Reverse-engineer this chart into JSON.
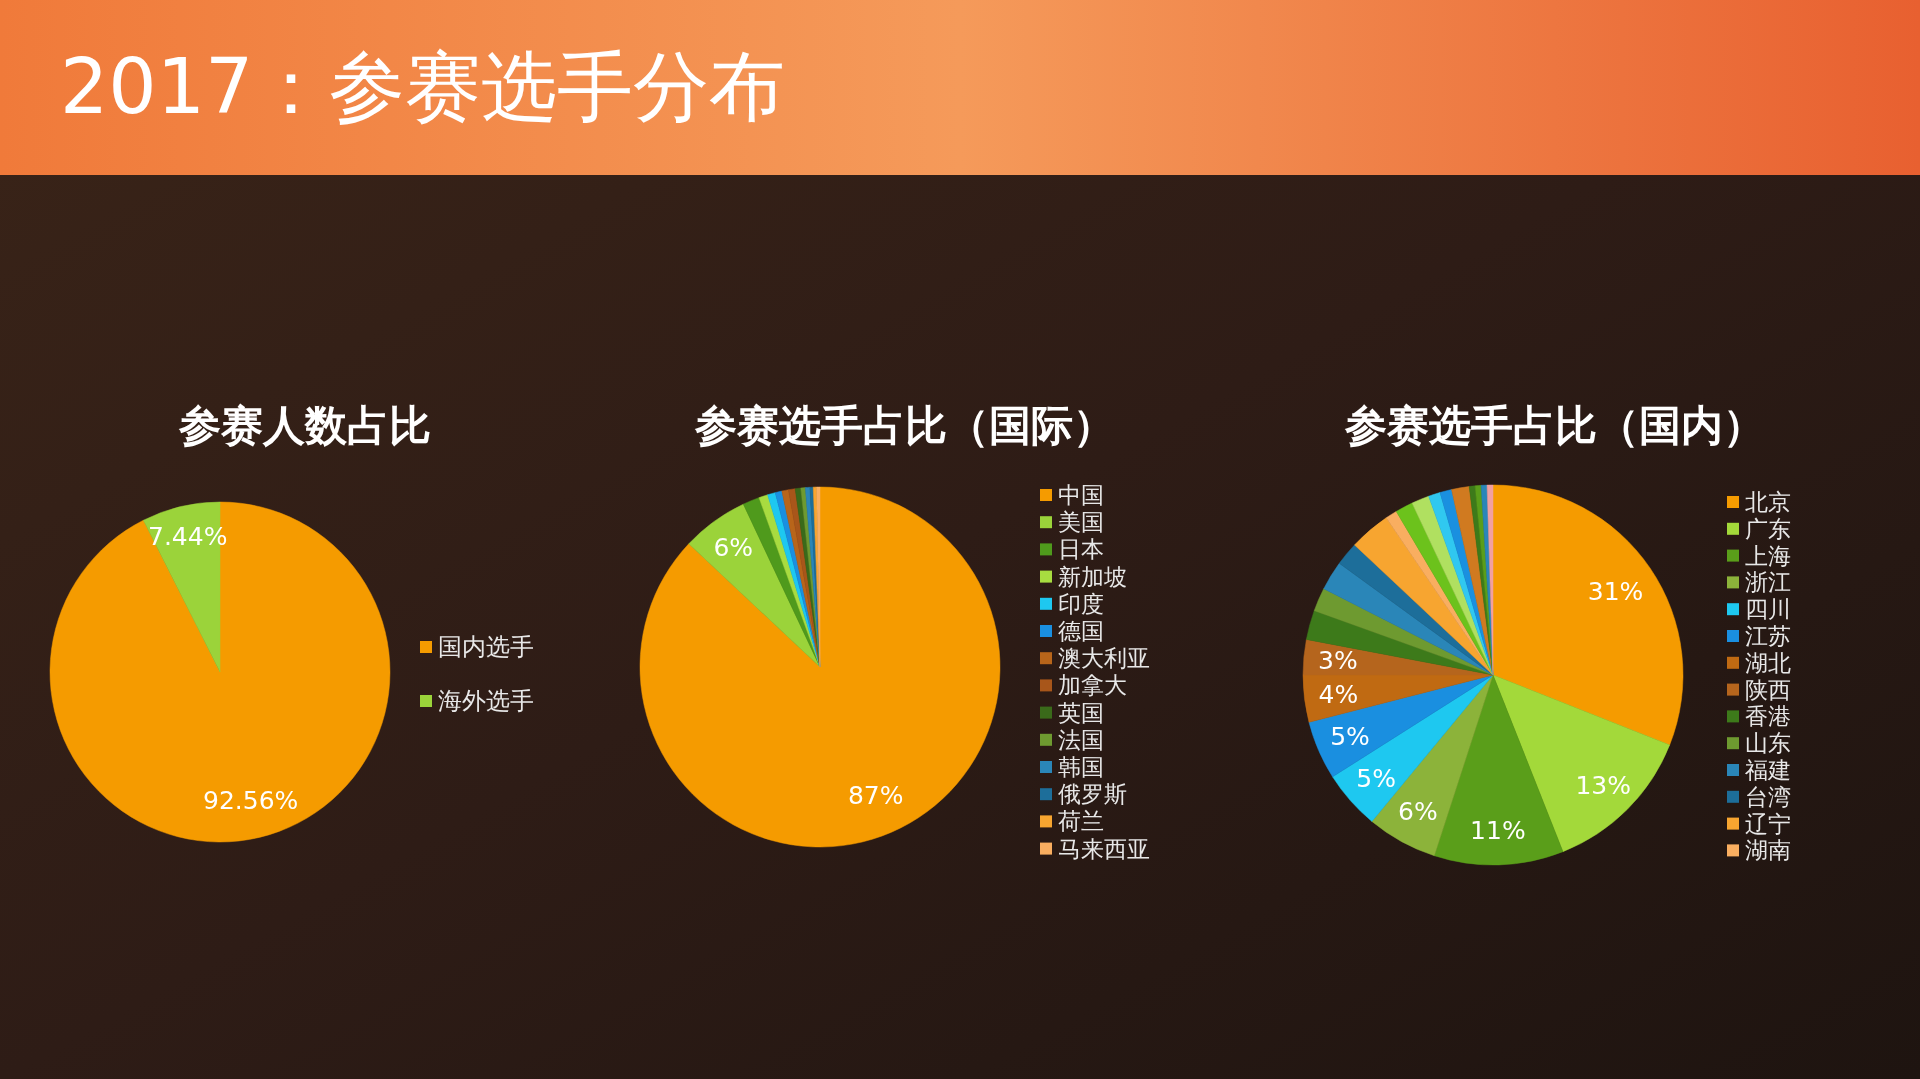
{
  "chart_data": [
    {
      "type": "pie",
      "title": "参赛人数占比",
      "annotations": [
        "2017：参赛选手分布"
      ],
      "categories": [
        "国内选手",
        "海外选手"
      ],
      "values": [
        92.56,
        7.44
      ],
      "colors": [
        "#f59b00",
        "#9bd33a"
      ],
      "value_labels": [
        "92.56%",
        "7.44%"
      ],
      "legend": "right"
    },
    {
      "type": "pie",
      "title": "参赛选手占比（国际）",
      "categories": [
        "中国",
        "美国",
        "日本",
        "新加坡",
        "印度",
        "德国",
        "澳大利亚",
        "加拿大",
        "英国",
        "法国",
        "韩国",
        "俄罗斯",
        "荷兰",
        "马来西亚"
      ],
      "values": [
        87,
        6,
        1.5,
        0.8,
        0.7,
        0.6,
        0.6,
        0.6,
        0.5,
        0.4,
        0.4,
        0.3,
        0.3,
        0.3
      ],
      "colors": [
        "#f59b00",
        "#9bd33a",
        "#4f9a1c",
        "#a8dc40",
        "#1ec8f0",
        "#1a8fe0",
        "#b8651a",
        "#a8561a",
        "#3a6a1a",
        "#6e9a30",
        "#2a86b8",
        "#1d6e9a",
        "#f7a530",
        "#f9ae60"
      ],
      "value_labels": [
        "87%",
        "6%",
        null,
        null,
        null,
        null,
        null,
        null,
        null,
        null,
        null,
        null,
        null,
        null
      ],
      "legend": "right"
    },
    {
      "type": "pie",
      "title": "参赛选手占比（国内）",
      "categories": [
        "北京",
        "广东",
        "上海",
        "浙江",
        "四川",
        "江苏",
        "湖北",
        "陕西",
        "香港",
        "山东",
        "福建",
        "台湾",
        "辽宁",
        "湖南",
        null,
        null,
        null,
        null,
        null,
        null,
        null,
        null,
        null
      ],
      "values": [
        31,
        13,
        11,
        6,
        5,
        5,
        4,
        3,
        2.5,
        2,
        2.5,
        2,
        3.5,
        1,
        1.5,
        1.5,
        1,
        1,
        1.5,
        0.5,
        0.5,
        0.5,
        0.5
      ],
      "colors": [
        "#f59b00",
        "#a3d93a",
        "#5a9e1a",
        "#8cb33a",
        "#1ec8f0",
        "#1a8fe0",
        "#c06a12",
        "#b5651d",
        "#3d7a1a",
        "#6e9a30",
        "#2a86b8",
        "#1d6e9a",
        "#f7a530",
        "#f9ae60",
        "#6cc21c",
        "#b0e060",
        "#30c8f0",
        "#1a90e0",
        "#d07a20",
        "#3d7a1a",
        "#5a9e1a",
        "#2a86b8",
        "#f2a0a0"
      ],
      "value_labels": [
        "31%",
        "13%",
        "11%",
        "6%",
        "5%",
        "5%",
        "4%",
        "3%",
        null,
        null,
        null,
        null,
        null,
        null,
        null,
        null,
        null,
        null,
        null,
        null,
        null,
        null,
        null
      ],
      "legend": "right"
    }
  ]
}
